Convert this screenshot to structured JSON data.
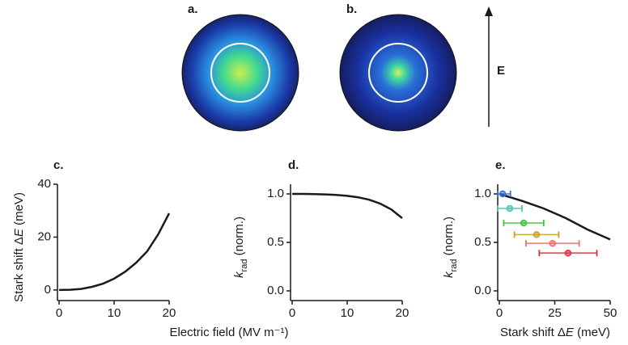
{
  "illustrations": {
    "panel_a": "a.",
    "panel_b": "b.",
    "field": "E"
  },
  "chart_data": [
    {
      "type": "line",
      "label": "c.",
      "ylabel": [
        "Stark shift Δ",
        "E",
        " (meV)"
      ],
      "xlabel": "Electric field (MV m⁻¹)",
      "x": [
        0,
        2,
        4,
        6,
        8,
        10,
        12,
        14,
        16,
        18,
        20
      ],
      "values": [
        0,
        0.1,
        0.4,
        1.2,
        2.4,
        4.3,
        6.9,
        10.3,
        14.6,
        21,
        29
      ],
      "color": "#1a1a1a",
      "xlim": [
        0,
        20
      ],
      "ylim": [
        -4,
        40
      ],
      "xticks": [
        0,
        10,
        20
      ],
      "yticks": [
        0,
        20,
        40
      ]
    },
    {
      "type": "line",
      "label": "d.",
      "ylabel": [
        "k",
        "rad",
        " (norm.)"
      ],
      "x": [
        0,
        2,
        4,
        6,
        8,
        10,
        12,
        14,
        16,
        18,
        20
      ],
      "values": [
        1,
        1,
        0.998,
        0.995,
        0.99,
        0.98,
        0.965,
        0.94,
        0.9,
        0.84,
        0.75
      ],
      "color": "#1a1a1a",
      "xlim": [
        0,
        20
      ],
      "ylim": [
        -0.1,
        1.1
      ],
      "xticks": [
        0,
        10,
        20
      ],
      "yticks": [
        {
          "value": 0,
          "label": "0.0"
        },
        {
          "value": 0.5,
          "label": "0.5"
        },
        {
          "value": 1,
          "label": "1.0"
        }
      ]
    },
    {
      "type": "line",
      "label": "e.",
      "ylabel": [
        "k",
        "rad",
        " (norm.)"
      ],
      "xlabel": [
        "Stark shift Δ",
        "E",
        " (meV)"
      ],
      "x": [
        0,
        10,
        20,
        30,
        40,
        50
      ],
      "values": [
        1.0,
        0.93,
        0.85,
        0.75,
        0.63,
        0.53
      ],
      "color": "#1a1a1a",
      "points": {
        "x": [
          1.5,
          4.7,
          11,
          16.8,
          24,
          31
        ],
        "values": [
          1.0,
          0.85,
          0.7,
          0.58,
          0.49,
          0.39
        ],
        "xerr": [
          3.5,
          5.5,
          9,
          10,
          12,
          13
        ],
        "colors": [
          "#3b6fd6",
          "#40c8b0",
          "#38c838",
          "#c8a020",
          "#f07070",
          "#e03040"
        ]
      },
      "xlim": [
        0,
        50
      ],
      "ylim": [
        -0.1,
        1.1
      ],
      "xticks": [
        0,
        25,
        50
      ],
      "yticks": [
        {
          "value": 0,
          "label": "0.0"
        },
        {
          "value": 0.5,
          "label": "0.5"
        },
        {
          "value": 1,
          "label": "1.0"
        }
      ]
    }
  ]
}
